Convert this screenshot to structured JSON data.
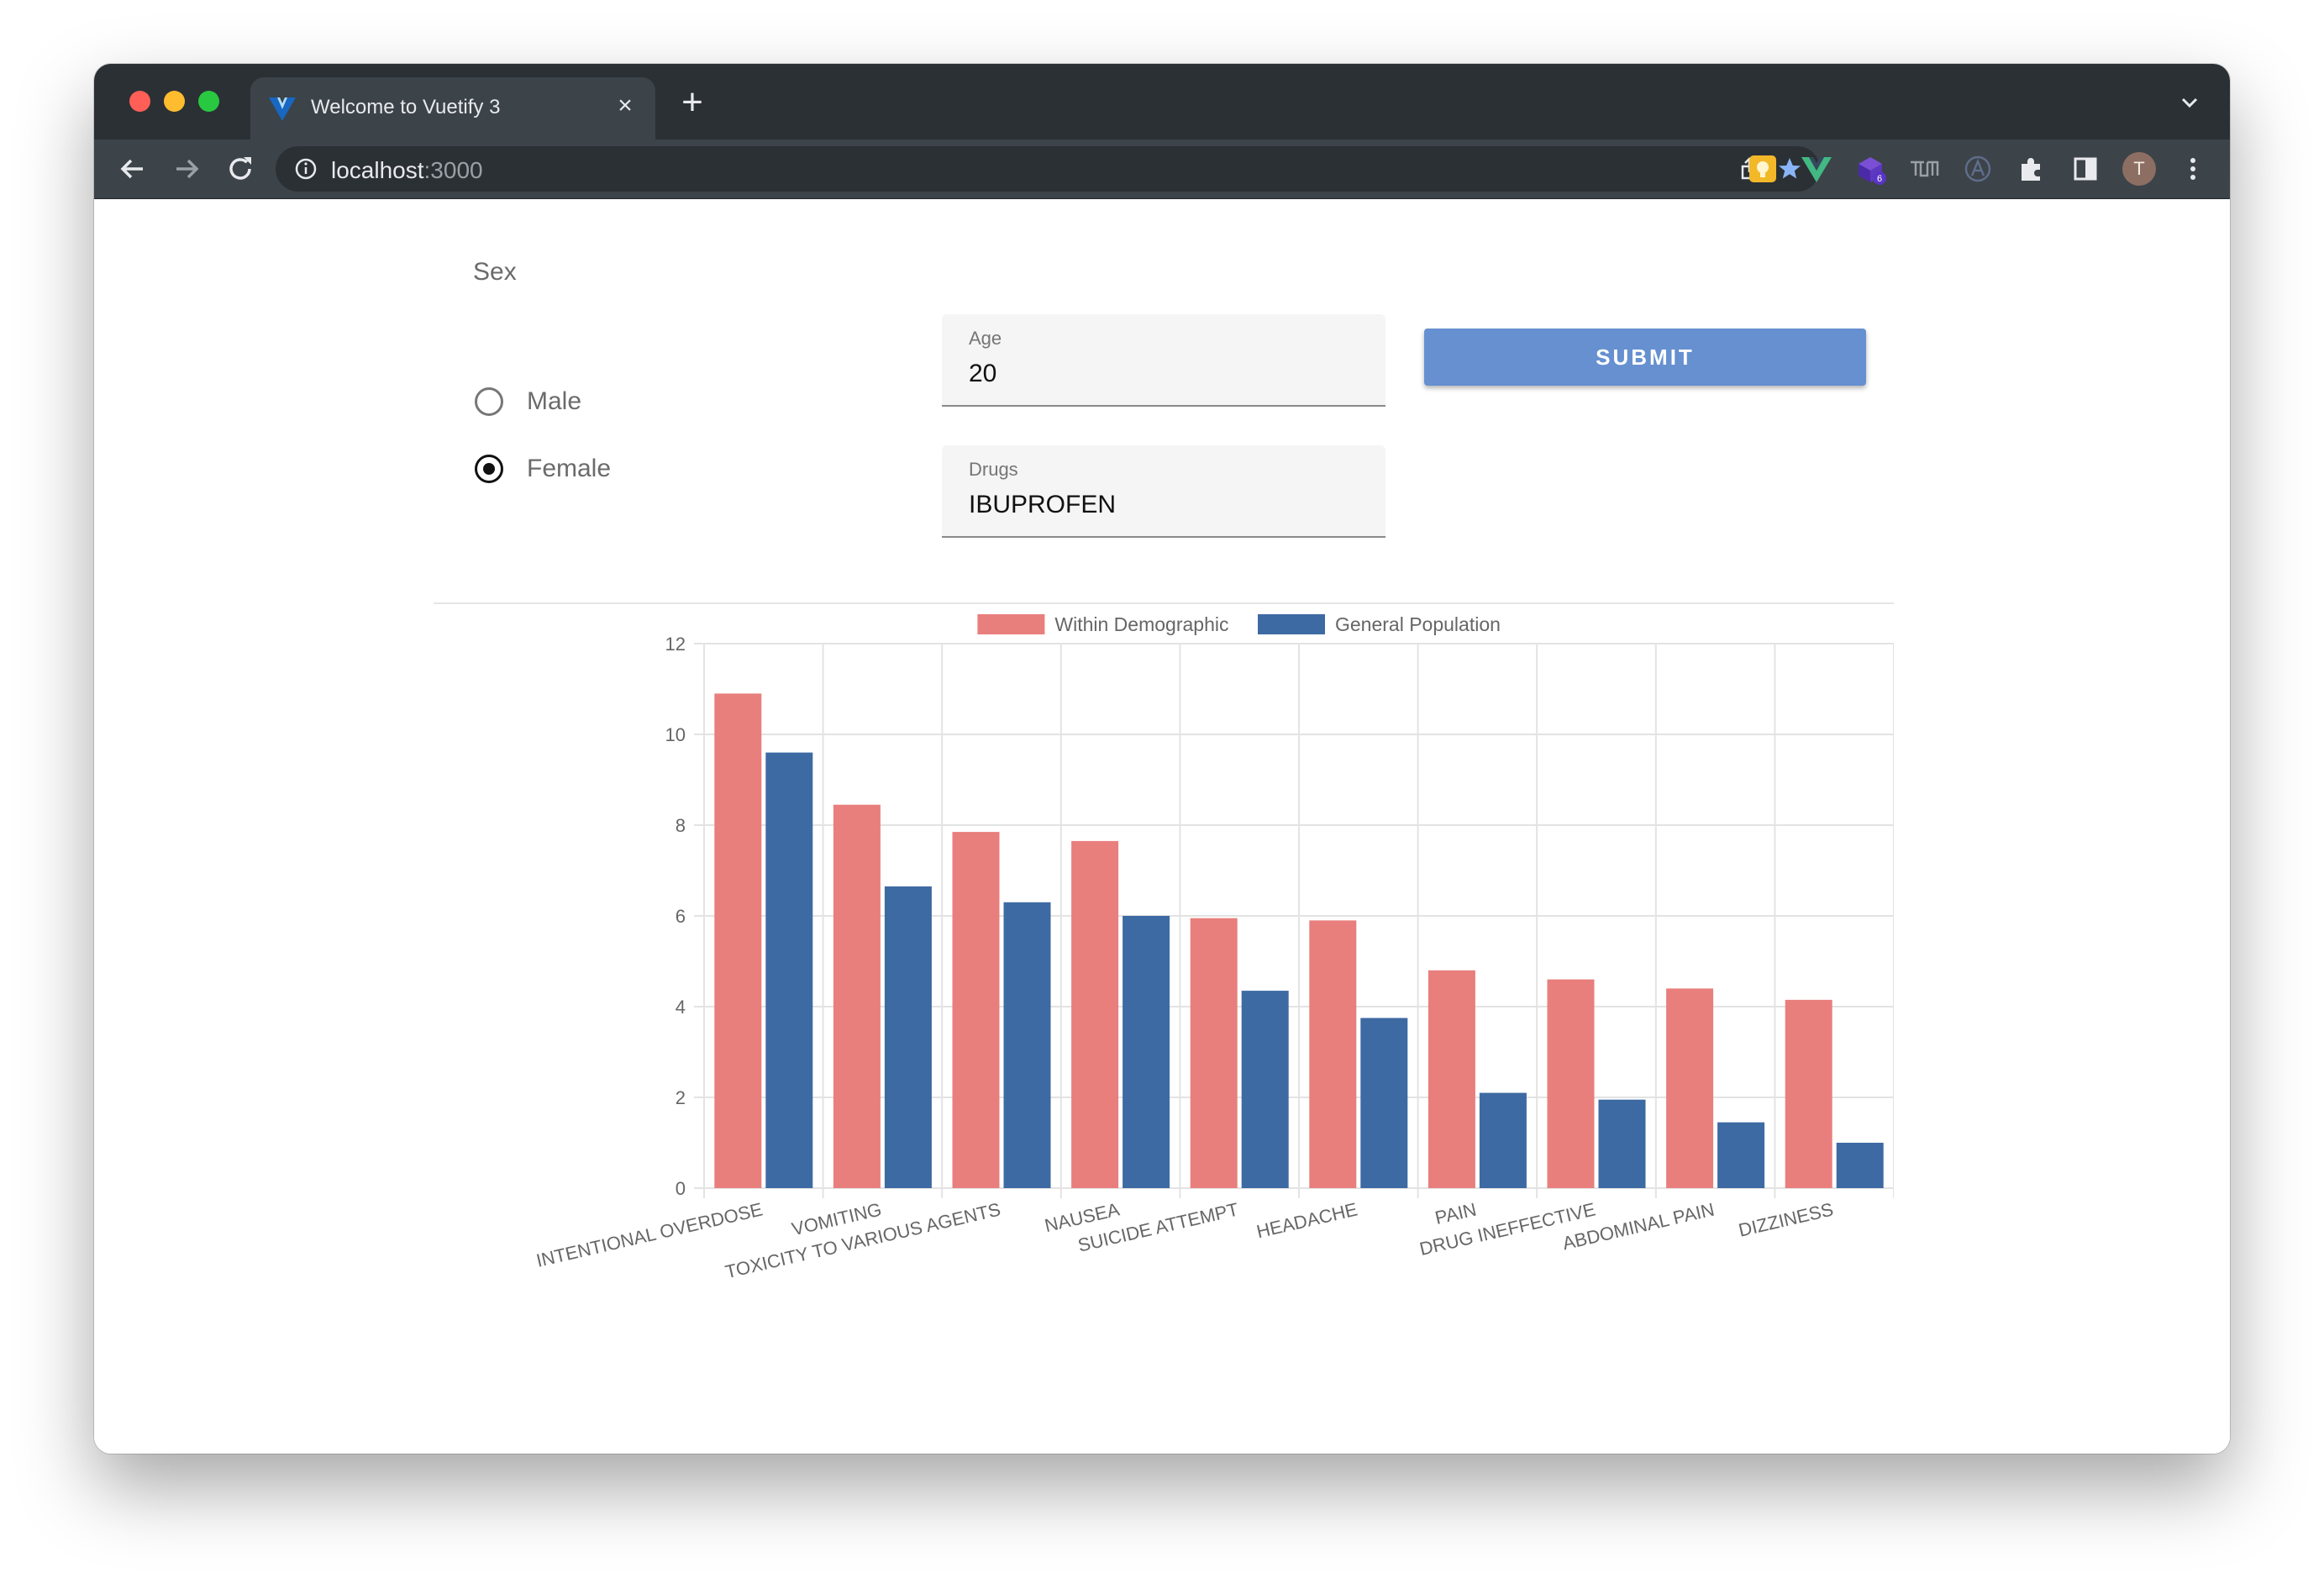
{
  "browser": {
    "tab_title": "Welcome to Vuetify 3",
    "close_glyph": "×",
    "new_tab_glyph": "+",
    "url_host": "localhost",
    "url_port": ":3000",
    "profile_initial": "T",
    "extension_badge": "6",
    "toolbar_icons": [
      "back-icon",
      "forward-icon",
      "reload-icon",
      "info-icon",
      "share-icon",
      "bookmark-star-icon",
      "extensions-puzzle-icon",
      "sidebar-icon",
      "kebab-menu-icon"
    ],
    "accent": "#8ab4f8"
  },
  "form": {
    "sex_label": "Sex",
    "options": [
      {
        "label": "Male",
        "checked": false
      },
      {
        "label": "Female",
        "checked": true
      }
    ],
    "age": {
      "label": "Age",
      "value": "20"
    },
    "drugs": {
      "label": "Drugs",
      "value": "IBUPROFEN"
    },
    "submit_label": "SUBMIT"
  },
  "chart_data": {
    "type": "bar",
    "categories": [
      "INTENTIONAL OVERDOSE",
      "VOMITING",
      "TOXICITY TO VARIOUS AGENTS",
      "NAUSEA",
      "SUICIDE ATTEMPT",
      "HEADACHE",
      "PAIN",
      "DRUG INEFFECTIVE",
      "ABDOMINAL PAIN",
      "DIZZINESS"
    ],
    "series": [
      {
        "name": "Within Demographic",
        "color": "#e87f7d",
        "values": [
          10.9,
          8.45,
          7.85,
          7.65,
          5.95,
          5.9,
          4.8,
          4.6,
          4.4,
          4.15
        ]
      },
      {
        "name": "General Population",
        "color": "#3e6aa3",
        "values": [
          9.6,
          6.65,
          6.3,
          6.0,
          4.35,
          3.75,
          2.1,
          1.95,
          1.45,
          1.0
        ]
      }
    ],
    "ylim": [
      0,
      12
    ],
    "yticks": [
      0,
      2,
      4,
      6,
      8,
      10,
      12
    ],
    "grid": true,
    "legend": "top-center"
  }
}
